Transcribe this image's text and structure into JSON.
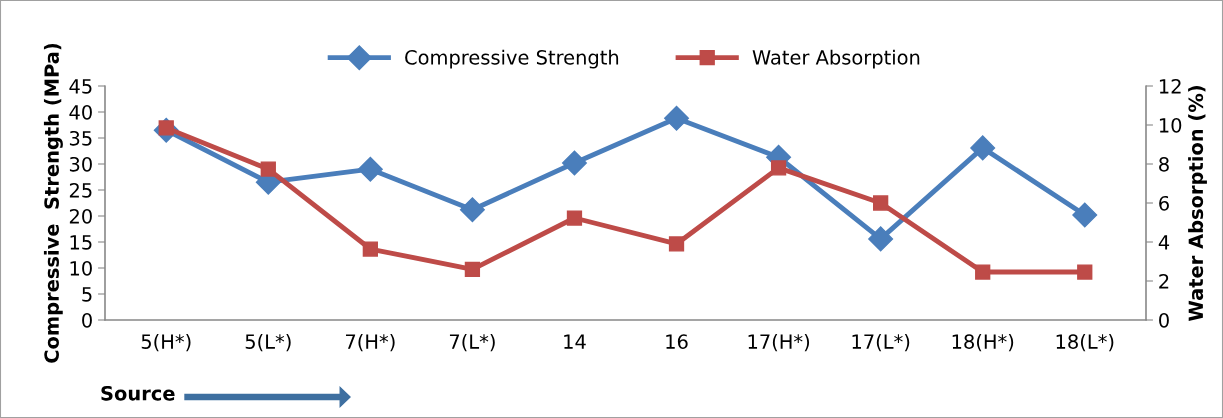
{
  "chart_data": {
    "type": "line",
    "categories": [
      "5(H*)",
      "5(L*)",
      "7(H*)",
      "7(L*)",
      "14",
      "16",
      "17(H*)",
      "17(L*)",
      "18(H*)",
      "18(L*)"
    ],
    "series": [
      {
        "name": "Compressive Strength",
        "color": "#4a7ebb",
        "marker": "diamond",
        "values": [
          36.5,
          26.5,
          29,
          21.2,
          30.2,
          38.8,
          31.3,
          15.6,
          33.1,
          20.2
        ]
      },
      {
        "name": "Water Absorption",
        "color": "#be4b48",
        "marker": "square",
        "axis": "y2",
        "values": [
          9.85,
          7.74,
          3.64,
          2.6,
          5.23,
          3.9,
          7.8,
          6.0,
          2.46,
          2.46
        ]
      }
    ],
    "ylabel": "Compressive  Strength (MPa)",
    "y2label": "Water Absorption (%)",
    "ylim": [
      0,
      45
    ],
    "yticks": [
      0,
      5,
      10,
      15,
      20,
      25,
      30,
      35,
      40,
      45
    ],
    "y2lim": [
      0,
      12
    ],
    "y2ticks": [
      0,
      2,
      4,
      6,
      8,
      10,
      12
    ],
    "annotations": [
      "Source"
    ],
    "legend": "top",
    "grid": false,
    "line_style": "solid"
  }
}
